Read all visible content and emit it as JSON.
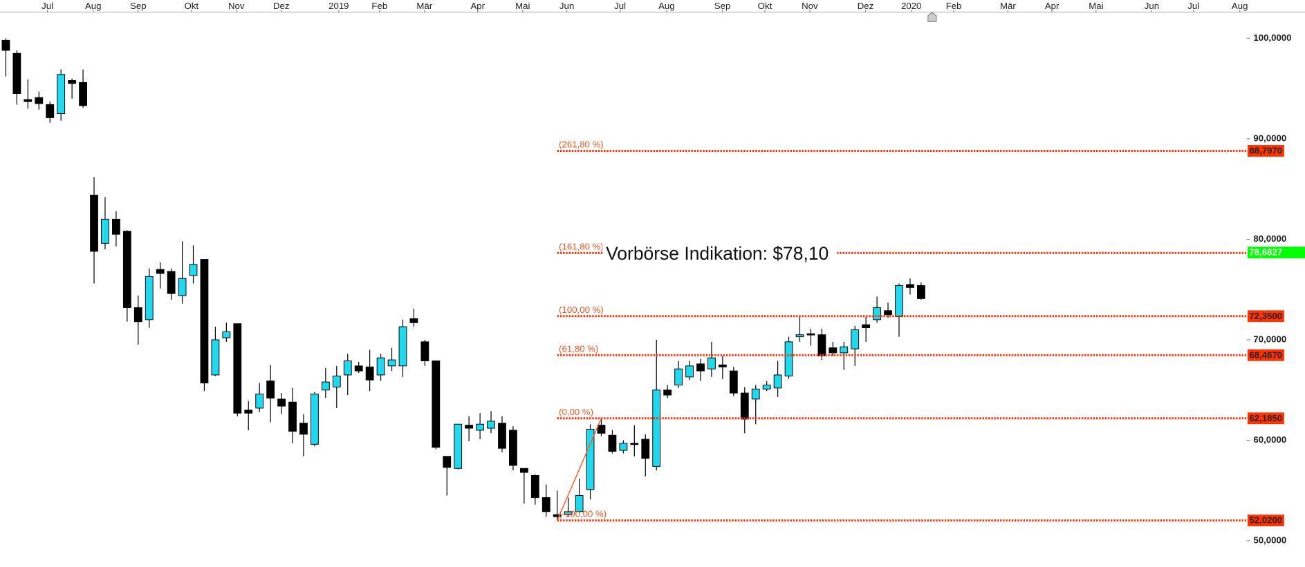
{
  "chart_data": {
    "type": "candlestick",
    "x": [
      0,
      1,
      2,
      3,
      4,
      5,
      6,
      7,
      8,
      9,
      10,
      11,
      12,
      13,
      14,
      15,
      16,
      17,
      18,
      19,
      20,
      21,
      22,
      23,
      24,
      25,
      26,
      27,
      28,
      29,
      30,
      31,
      32,
      33,
      34,
      35,
      36,
      37,
      38,
      39,
      40,
      41,
      42,
      43,
      44,
      45,
      46,
      47,
      48,
      49,
      50,
      51,
      52,
      53,
      54,
      55,
      56,
      57,
      58,
      59,
      60,
      61,
      62,
      63,
      64,
      65,
      66,
      67,
      68,
      69,
      70,
      71,
      72,
      73,
      74,
      75,
      76,
      77,
      78,
      79,
      80,
      81,
      82,
      83
    ],
    "open": [
      99.8,
      98.5,
      93.9,
      94.1,
      93.4,
      92.5,
      95.8,
      95.6,
      84.4,
      79.6,
      82.0,
      80.8,
      73.2,
      72.0,
      77.0,
      76.8,
      74.4,
      76.4,
      78.0,
      66.5,
      70.2,
      71.6,
      63.0,
      63.2,
      65.9,
      64.1,
      63.8,
      61.7,
      59.6,
      65.0,
      65.3,
      66.5,
      67.4,
      67.3,
      66.5,
      67.4,
      67.4,
      72.1,
      69.8,
      67.9,
      58.4,
      57.2,
      61.5,
      61.0,
      61.2,
      61.7,
      61.0,
      57.2,
      56.5,
      54.3,
      52.6,
      52.6,
      52.9,
      55.1,
      61.5,
      60.5,
      59.0,
      59.7,
      60.1,
      57.4,
      65.0,
      65.5,
      66.3,
      67.6,
      67.1,
      67.5,
      66.9,
      64.7,
      64.1,
      65.1,
      65.2,
      66.4,
      70.3,
      70.6,
      70.5,
      69.2,
      68.7,
      69.1,
      71.5,
      72.0,
      72.9,
      72.3,
      75.5,
      75.4
    ],
    "high": [
      100.0,
      98.8,
      95.9,
      94.7,
      93.7,
      96.9,
      96.0,
      96.9,
      86.2,
      84.2,
      82.8,
      80.9,
      74.4,
      77.1,
      77.7,
      77.1,
      79.8,
      79.4,
      78.0,
      71.3,
      71.7,
      71.6,
      63.9,
      65.7,
      67.5,
      64.7,
      65.2,
      62.6,
      64.8,
      67.2,
      67.4,
      68.6,
      67.8,
      69.0,
      68.6,
      69.2,
      72.0,
      73.1,
      70.0,
      67.9,
      58.4,
      61.6,
      62.4,
      62.7,
      62.9,
      62.4,
      61.4,
      57.2,
      56.6,
      55.6,
      55.0,
      54.3,
      56.2,
      61.6,
      62.1,
      61.0,
      60.0,
      61.5,
      60.6,
      70.0,
      65.5,
      67.9,
      67.9,
      68.1,
      69.8,
      68.4,
      67.3,
      65.3,
      65.5,
      65.9,
      67.9,
      70.3,
      72.3,
      71.1,
      71.1,
      69.8,
      69.8,
      71.4,
      72.3,
      74.3,
      73.7,
      75.6,
      76.1,
      75.7
    ],
    "low": [
      96.2,
      93.4,
      93.0,
      92.9,
      91.6,
      91.8,
      94.0,
      93.1,
      75.6,
      79.0,
      79.3,
      71.8,
      69.5,
      71.2,
      75.1,
      74.0,
      73.6,
      75.6,
      64.9,
      66.4,
      69.8,
      62.4,
      61.0,
      62.8,
      61.8,
      62.6,
      59.7,
      58.4,
      59.4,
      64.2,
      63.2,
      64.5,
      66.7,
      64.9,
      65.9,
      66.9,
      66.3,
      71.3,
      67.4,
      59.1,
      54.5,
      57.1,
      59.9,
      60.1,
      60.7,
      58.8,
      57.0,
      53.7,
      53.6,
      52.4,
      52.1,
      52.4,
      52.8,
      54.1,
      60.4,
      58.7,
      58.7,
      58.4,
      56.4,
      57.0,
      64.2,
      65.2,
      66.0,
      65.9,
      66.3,
      66.1,
      64.4,
      60.7,
      61.6,
      64.9,
      64.3,
      66.1,
      69.8,
      69.4,
      68.0,
      68.4,
      67.0,
      67.4,
      69.8,
      71.7,
      72.2,
      70.3,
      74.5,
      74.0
    ],
    "close": [
      98.8,
      94.5,
      93.7,
      93.5,
      92.1,
      96.4,
      95.5,
      93.3,
      78.8,
      82.0,
      80.5,
      73.2,
      71.8,
      76.3,
      76.6,
      74.6,
      76.1,
      77.5,
      65.7,
      70.0,
      70.8,
      62.7,
      62.7,
      64.6,
      64.2,
      63.4,
      60.9,
      60.6,
      64.6,
      65.8,
      66.4,
      67.9,
      66.9,
      66.0,
      68.2,
      68.0,
      71.3,
      71.7,
      67.9,
      59.3,
      57.3,
      61.6,
      61.2,
      61.6,
      61.9,
      59.2,
      57.5,
      56.8,
      54.3,
      52.9,
      52.4,
      52.9,
      54.5,
      61.1,
      60.7,
      58.9,
      59.7,
      59.6,
      58.2,
      65.0,
      64.5,
      67.1,
      67.4,
      66.9,
      68.2,
      67.3,
      64.7,
      62.1,
      65.1,
      65.5,
      66.5,
      69.8,
      70.5,
      70.5,
      68.4,
      68.7,
      69.3,
      71.0,
      71.2,
      73.2,
      72.5,
      75.4,
      75.2,
      74.1
    ],
    "up_color": "#22d8ee",
    "down_color": "#000000",
    "xlim": [
      -0.53,
      112.53
    ],
    "xticks": [
      {
        "value": 3.77,
        "label": "Jul"
      },
      {
        "value": 7.92,
        "label": "Aug"
      },
      {
        "value": 12.0,
        "label": "Sep"
      },
      {
        "value": 16.83,
        "label": "Okt"
      },
      {
        "value": 20.9,
        "label": "Nov"
      },
      {
        "value": 24.98,
        "label": "Dez"
      },
      {
        "value": 30.19,
        "label": "2019"
      },
      {
        "value": 33.89,
        "label": "Feb"
      },
      {
        "value": 37.96,
        "label": "Mär"
      },
      {
        "value": 42.79,
        "label": "Apr"
      },
      {
        "value": 46.87,
        "label": "Mai"
      },
      {
        "value": 50.87,
        "label": "Jun"
      },
      {
        "value": 55.7,
        "label": "Jul"
      },
      {
        "value": 59.92,
        "label": "Aug"
      },
      {
        "value": 64.98,
        "label": "Sep"
      },
      {
        "value": 68.83,
        "label": "Okt"
      },
      {
        "value": 72.9,
        "label": "Nov"
      },
      {
        "value": 77.96,
        "label": "Dez"
      },
      {
        "value": 82.11,
        "label": "2020"
      },
      {
        "value": 85.96,
        "label": "Feb"
      },
      {
        "value": 90.87,
        "label": "Mär"
      },
      {
        "value": 94.87,
        "label": "Apr"
      },
      {
        "value": 98.87,
        "label": "Mai"
      },
      {
        "value": 103.92,
        "label": "Jun"
      },
      {
        "value": 107.7,
        "label": "Jul"
      },
      {
        "value": 111.9,
        "label": "Aug"
      }
    ],
    "ylim": [
      47.39,
      102.65
    ],
    "yticks": [
      {
        "value": 50,
        "label": "50,0000"
      },
      {
        "value": 60,
        "label": "60,0000"
      },
      {
        "value": 70,
        "label": "70,0000"
      },
      {
        "value": 80,
        "label": "80,0000"
      },
      {
        "value": 90,
        "label": "90,0000"
      },
      {
        "value": 100,
        "label": "100,0000"
      }
    ],
    "trend_line": {
      "x": [
        50,
        54
      ],
      "y": [
        52.02,
        62.185
      ],
      "color": "#ff5a1f"
    },
    "levels_color": "#ff3300",
    "levels": [
      {
        "label": "(261,80 %)",
        "value": 88.797,
        "value_label": "88,7970"
      },
      {
        "label": "(161,80 %)",
        "value": 78.632
      },
      {
        "label": "(100,00 %)",
        "value": 72.35,
        "value_label": "72,3500"
      },
      {
        "label": "(61,80 %)",
        "value": 68.467,
        "value_label": "68,4670"
      },
      {
        "label": "(0,00 %)",
        "value": 62.185,
        "value_label": "62,1850"
      },
      {
        "label": "(-100,00 %)",
        "value": 52.02,
        "value_label": "52,0200"
      }
    ],
    "price_marker": {
      "value": 78.6827,
      "label": "78,6827",
      "color": "#00ff00"
    },
    "annotation": "Vorbörse Indikation: $78,10"
  }
}
